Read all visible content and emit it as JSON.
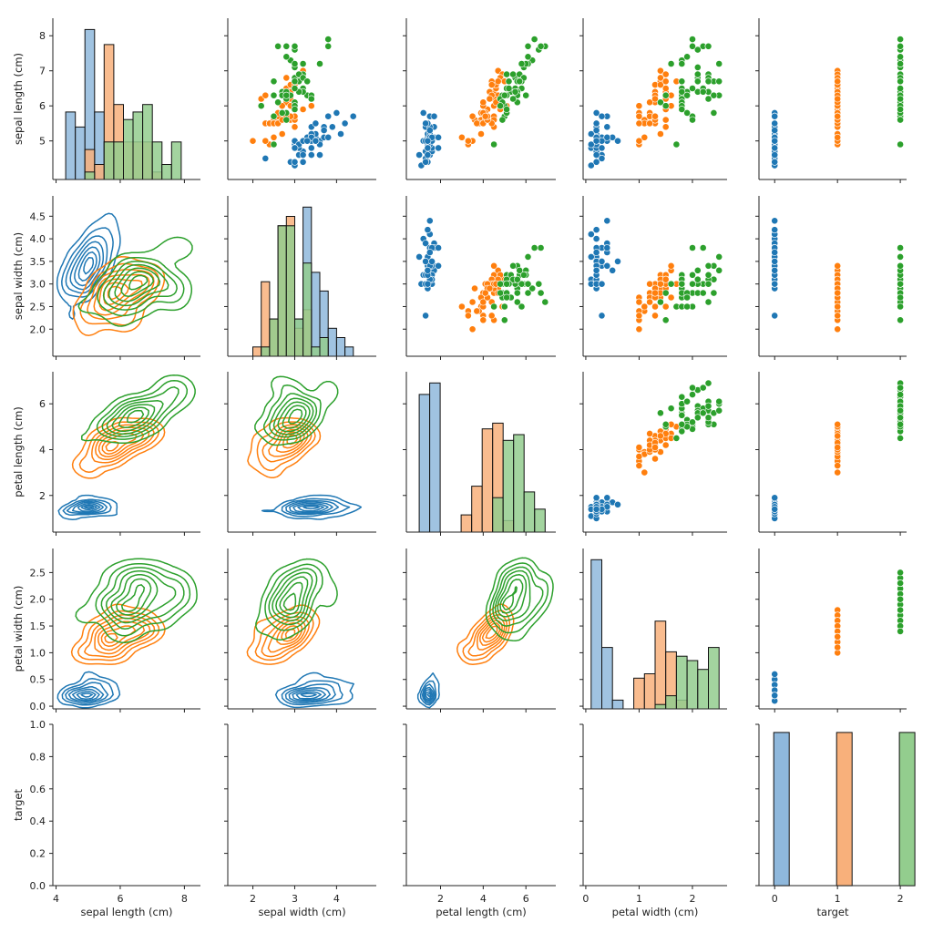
{
  "chart_data": {
    "type": "scatter",
    "title": "",
    "variables": [
      "sepal length (cm)",
      "sepal width (cm)",
      "petal length (cm)",
      "petal width (cm)",
      "target"
    ],
    "axis_labels": {
      "x": [
        "sepal length (cm)",
        "sepal width (cm)",
        "petal length (cm)",
        "petal width (cm)",
        "target"
      ],
      "y": [
        "sepal length (cm)",
        "sepal width (cm)",
        "petal length (cm)",
        "petal width (cm)",
        "target"
      ]
    },
    "ranges": [
      [
        3.9,
        8.5
      ],
      [
        1.4,
        4.95
      ],
      [
        0.4,
        7.4
      ],
      [
        -0.05,
        2.95
      ],
      [
        0,
        1
      ]
    ],
    "x_ranges": [
      [
        3.9,
        8.5
      ],
      [
        1.4,
        4.95
      ],
      [
        0.4,
        7.4
      ],
      [
        -0.05,
        2.65
      ],
      [
        -0.25,
        2.1
      ]
    ],
    "ticks": [
      [
        4,
        6,
        8
      ],
      [
        2,
        3,
        4
      ],
      [
        2,
        4,
        6
      ],
      [
        0,
        1,
        2
      ],
      [
        0,
        1,
        2
      ]
    ],
    "y_ticks": [
      [
        5,
        6,
        7,
        8
      ],
      [
        2.0,
        2.5,
        3.0,
        3.5,
        4.0,
        4.5
      ],
      [
        2,
        4,
        6
      ],
      [
        0.0,
        0.5,
        1.0,
        1.5,
        2.0,
        2.5
      ],
      [
        0.0,
        0.2,
        0.4,
        0.6,
        0.8,
        1.0
      ]
    ],
    "y_tick_labels": [
      [
        "5",
        "6",
        "7",
        "8"
      ],
      [
        "2.0",
        "2.5",
        "3.0",
        "3.5",
        "4.0",
        "4.5"
      ],
      [
        "2",
        "4",
        "6"
      ],
      [
        "0.0",
        "0.5",
        "1.0",
        "1.5",
        "2.0",
        "2.5"
      ],
      [
        "0.0",
        "0.2",
        "0.4",
        "0.6",
        "0.8",
        "1.0"
      ]
    ],
    "hue_colors": [
      "#1f77b4",
      "#ff7f0e",
      "#2ca02c"
    ],
    "hist_colors": [
      "#8fb8dc",
      "#f8b07b",
      "#93cd8e"
    ],
    "classes": [
      {
        "target": 0,
        "sepal_length": [
          5.1,
          4.9,
          4.7,
          4.6,
          5.0,
          5.4,
          4.6,
          5.0,
          4.4,
          4.9,
          5.4,
          4.8,
          4.8,
          4.3,
          5.8,
          5.7,
          5.4,
          5.1,
          5.7,
          5.1,
          5.4,
          5.1,
          4.6,
          5.1,
          4.8,
          5.0,
          5.0,
          5.2,
          5.2,
          4.7,
          4.8,
          5.4,
          5.2,
          5.5,
          4.9,
          5.0,
          5.5,
          4.9,
          4.4,
          5.1,
          5.0,
          4.5,
          4.4,
          5.0,
          5.1,
          4.8,
          5.1,
          4.6,
          5.3,
          5.0
        ],
        "sepal_width": [
          3.5,
          3.0,
          3.2,
          3.1,
          3.6,
          3.9,
          3.4,
          3.4,
          2.9,
          3.1,
          3.7,
          3.4,
          3.0,
          3.0,
          4.0,
          4.4,
          3.9,
          3.5,
          3.8,
          3.8,
          3.4,
          3.7,
          3.6,
          3.3,
          3.4,
          3.0,
          3.4,
          3.5,
          3.4,
          3.2,
          3.1,
          3.4,
          4.1,
          4.2,
          3.1,
          3.2,
          3.5,
          3.6,
          3.0,
          3.4,
          3.5,
          2.3,
          3.2,
          3.5,
          3.8,
          3.0,
          3.8,
          3.2,
          3.7,
          3.3
        ],
        "petal_length": [
          1.4,
          1.4,
          1.3,
          1.5,
          1.4,
          1.7,
          1.4,
          1.5,
          1.4,
          1.5,
          1.5,
          1.6,
          1.4,
          1.1,
          1.2,
          1.5,
          1.3,
          1.4,
          1.7,
          1.5,
          1.7,
          1.5,
          1.0,
          1.7,
          1.9,
          1.6,
          1.6,
          1.5,
          1.4,
          1.6,
          1.6,
          1.5,
          1.5,
          1.4,
          1.5,
          1.2,
          1.3,
          1.4,
          1.3,
          1.5,
          1.3,
          1.3,
          1.3,
          1.6,
          1.9,
          1.4,
          1.6,
          1.4,
          1.5,
          1.4
        ],
        "petal_width": [
          0.2,
          0.2,
          0.2,
          0.2,
          0.2,
          0.4,
          0.3,
          0.2,
          0.2,
          0.1,
          0.2,
          0.2,
          0.1,
          0.1,
          0.2,
          0.4,
          0.4,
          0.3,
          0.3,
          0.3,
          0.2,
          0.4,
          0.2,
          0.5,
          0.2,
          0.2,
          0.4,
          0.2,
          0.2,
          0.2,
          0.2,
          0.4,
          0.1,
          0.2,
          0.2,
          0.2,
          0.2,
          0.1,
          0.2,
          0.2,
          0.3,
          0.3,
          0.2,
          0.6,
          0.4,
          0.3,
          0.2,
          0.2,
          0.2,
          0.2
        ]
      },
      {
        "target": 1,
        "sepal_length": [
          7.0,
          6.4,
          6.9,
          5.5,
          6.5,
          5.7,
          6.3,
          4.9,
          6.6,
          5.2,
          5.0,
          5.9,
          6.0,
          6.1,
          5.6,
          6.7,
          5.6,
          5.8,
          6.2,
          5.6,
          5.9,
          6.1,
          6.3,
          6.1,
          6.4,
          6.6,
          6.8,
          6.7,
          6.0,
          5.7,
          5.5,
          5.5,
          5.8,
          6.0,
          5.4,
          6.0,
          6.7,
          6.3,
          5.6,
          5.5,
          5.5,
          6.1,
          5.8,
          5.0,
          5.6,
          5.7,
          5.7,
          6.2,
          5.1,
          5.7
        ],
        "sepal_width": [
          3.2,
          3.2,
          3.1,
          2.3,
          2.8,
          2.8,
          3.3,
          2.4,
          2.9,
          2.7,
          2.0,
          3.0,
          2.2,
          2.9,
          2.9,
          3.1,
          3.0,
          2.7,
          2.2,
          2.5,
          3.2,
          2.8,
          2.5,
          2.8,
          2.9,
          3.0,
          2.8,
          3.0,
          2.9,
          2.6,
          2.4,
          2.4,
          2.7,
          2.7,
          3.0,
          3.4,
          3.1,
          2.3,
          3.0,
          2.5,
          2.6,
          3.0,
          2.6,
          2.3,
          2.7,
          3.0,
          2.9,
          2.9,
          2.5,
          2.8
        ],
        "petal_length": [
          4.7,
          4.5,
          4.9,
          4.0,
          4.6,
          4.5,
          4.7,
          3.3,
          4.6,
          3.9,
          3.5,
          4.2,
          4.0,
          4.7,
          3.6,
          4.4,
          4.5,
          4.1,
          4.5,
          3.9,
          4.8,
          4.0,
          4.9,
          4.7,
          4.3,
          4.4,
          4.8,
          5.0,
          4.5,
          3.5,
          3.8,
          3.7,
          3.9,
          5.1,
          4.5,
          4.5,
          4.7,
          4.4,
          4.1,
          4.0,
          4.4,
          4.6,
          4.0,
          3.3,
          4.2,
          4.2,
          4.2,
          4.3,
          3.0,
          4.1
        ],
        "petal_width": [
          1.4,
          1.5,
          1.5,
          1.3,
          1.5,
          1.3,
          1.6,
          1.0,
          1.3,
          1.4,
          1.0,
          1.5,
          1.0,
          1.4,
          1.3,
          1.4,
          1.5,
          1.0,
          1.5,
          1.1,
          1.8,
          1.3,
          1.5,
          1.2,
          1.3,
          1.4,
          1.4,
          1.7,
          1.5,
          1.0,
          1.1,
          1.0,
          1.2,
          1.6,
          1.5,
          1.6,
          1.5,
          1.3,
          1.3,
          1.3,
          1.2,
          1.4,
          1.2,
          1.0,
          1.3,
          1.2,
          1.3,
          1.3,
          1.1,
          1.3
        ]
      },
      {
        "target": 2,
        "sepal_length": [
          6.3,
          5.8,
          7.1,
          6.3,
          6.5,
          7.6,
          4.9,
          7.3,
          6.7,
          7.2,
          6.5,
          6.4,
          6.8,
          5.7,
          5.8,
          6.4,
          6.5,
          7.7,
          7.7,
          6.0,
          6.9,
          5.6,
          7.7,
          6.3,
          6.7,
          7.2,
          6.2,
          6.1,
          6.4,
          7.2,
          7.4,
          7.9,
          6.4,
          6.3,
          6.1,
          7.7,
          6.3,
          6.4,
          6.0,
          6.9,
          6.7,
          6.9,
          5.8,
          6.8,
          6.7,
          6.7,
          6.3,
          6.5,
          6.2,
          5.9
        ],
        "sepal_width": [
          3.3,
          2.7,
          3.0,
          2.9,
          3.0,
          3.0,
          2.5,
          2.9,
          2.5,
          3.6,
          3.2,
          2.7,
          3.0,
          2.5,
          2.8,
          3.2,
          3.0,
          3.8,
          2.6,
          2.2,
          3.2,
          2.8,
          2.8,
          2.7,
          3.3,
          3.2,
          2.8,
          3.0,
          2.8,
          3.0,
          2.8,
          3.8,
          2.8,
          2.8,
          2.6,
          3.0,
          3.4,
          3.1,
          3.0,
          3.1,
          3.1,
          3.1,
          2.7,
          3.2,
          3.3,
          3.0,
          2.5,
          3.0,
          3.4,
          3.0
        ],
        "petal_length": [
          6.0,
          5.1,
          5.9,
          5.6,
          5.8,
          6.6,
          4.5,
          6.3,
          5.8,
          6.1,
          5.1,
          5.3,
          5.5,
          5.0,
          5.1,
          5.3,
          5.5,
          6.7,
          6.9,
          5.0,
          5.7,
          4.9,
          6.7,
          4.9,
          5.7,
          6.0,
          4.8,
          4.9,
          5.6,
          5.8,
          6.1,
          6.4,
          5.6,
          5.1,
          5.6,
          6.1,
          5.6,
          5.5,
          4.8,
          5.4,
          5.6,
          5.1,
          5.1,
          5.9,
          5.7,
          5.2,
          5.0,
          5.2,
          5.4,
          5.1
        ],
        "petal_width": [
          2.5,
          1.9,
          2.1,
          1.8,
          2.2,
          2.1,
          1.7,
          1.8,
          1.8,
          2.5,
          2.0,
          1.9,
          2.1,
          2.0,
          2.4,
          2.3,
          1.8,
          2.2,
          2.3,
          1.5,
          2.3,
          2.0,
          2.0,
          1.8,
          2.1,
          1.8,
          1.8,
          1.8,
          2.1,
          1.6,
          1.9,
          2.0,
          2.2,
          1.5,
          1.4,
          2.3,
          2.4,
          1.8,
          1.8,
          2.1,
          2.4,
          2.3,
          1.9,
          2.3,
          2.5,
          2.3,
          1.9,
          2.0,
          2.3,
          1.8
        ]
      }
    ],
    "target_hist": {
      "bins": [
        0,
        1,
        2
      ],
      "relative_height": [
        0.95,
        0.95,
        0.95
      ]
    }
  }
}
